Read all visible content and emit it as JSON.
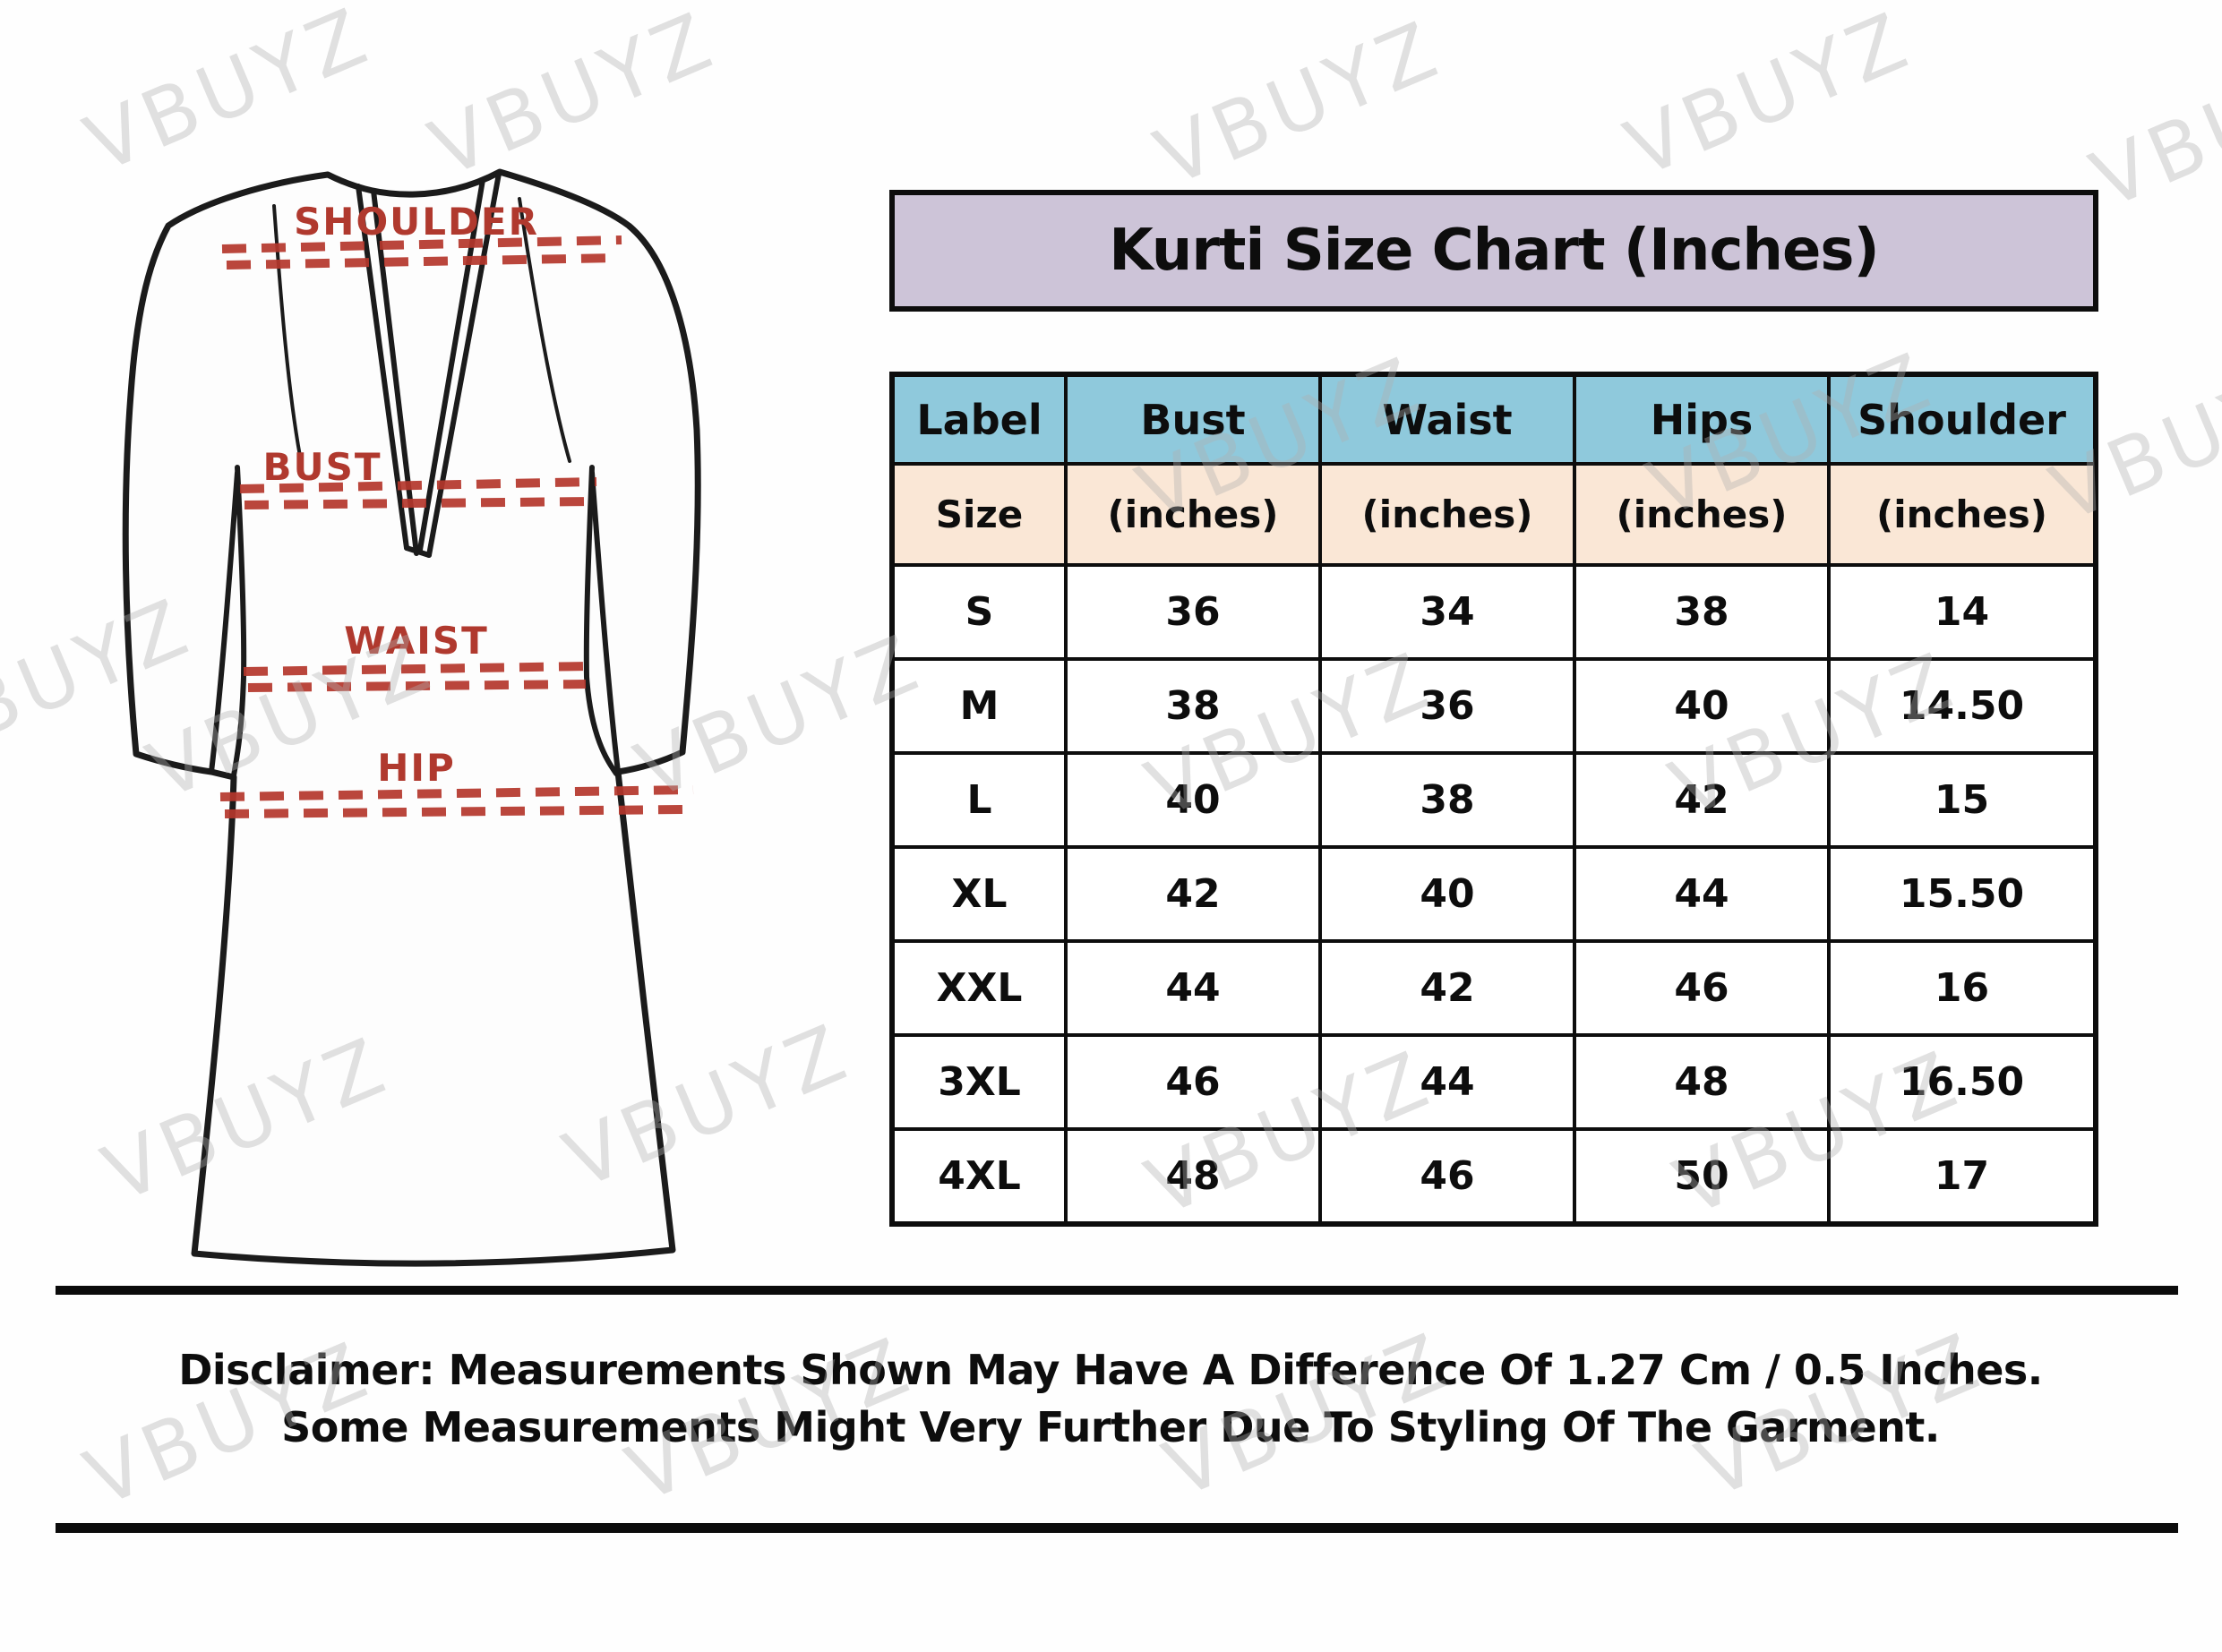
{
  "title": "Kurti Size Chart (Inches)",
  "watermark": {
    "text": "VBUYZ"
  },
  "diagram": {
    "shoulder_label": "SHOULDER",
    "bust_label": "BUST",
    "waist_label": "WAIST",
    "hip_label": "HIP"
  },
  "table": {
    "columns": [
      {
        "label": "Label",
        "sub": "Size"
      },
      {
        "label": "Bust",
        "sub": "(inches)"
      },
      {
        "label": "Waist",
        "sub": "(inches)"
      },
      {
        "label": "Hips",
        "sub": "(inches)"
      },
      {
        "label": "Shoulder",
        "sub": "(inches)"
      }
    ],
    "rows": [
      [
        "S",
        "36",
        "34",
        "38",
        "14"
      ],
      [
        "M",
        "38",
        "36",
        "40",
        "14.50"
      ],
      [
        "L",
        "40",
        "38",
        "42",
        "15"
      ],
      [
        "XL",
        "42",
        "40",
        "44",
        "15.50"
      ],
      [
        "XXL",
        "44",
        "42",
        "46",
        "16"
      ],
      [
        "3XL",
        "46",
        "44",
        "48",
        "16.50"
      ],
      [
        "4XL",
        "48",
        "46",
        "50",
        "17"
      ]
    ]
  },
  "disclaimer": {
    "line1": "Disclaimer: Measurements Shown May Have A Difference Of 1.27 Cm / 0.5 Inches.",
    "line2": "Some Measurements Might Very Further Due To Styling Of The Garment."
  },
  "colors": {
    "title_bg": "#cdc4d8",
    "header_bg": "#8fc9dc",
    "subheader_bg": "#fae7d6",
    "border": "#0d0d0d",
    "label_red": "#b0392e",
    "dash_red": "#b5372c",
    "garment_line": "#1b1b1b"
  },
  "chart_data": {
    "type": "table",
    "title": "Kurti Size Chart (Inches)",
    "columns": [
      "Label Size",
      "Bust (inches)",
      "Waist (inches)",
      "Hips (inches)",
      "Shoulder (inches)"
    ],
    "rows": [
      [
        "S",
        36,
        34,
        38,
        14
      ],
      [
        "M",
        38,
        36,
        40,
        14.5
      ],
      [
        "L",
        40,
        38,
        42,
        15
      ],
      [
        "XL",
        42,
        40,
        44,
        15.5
      ],
      [
        "XXL",
        44,
        42,
        46,
        16
      ],
      [
        "3XL",
        46,
        44,
        48,
        16.5
      ],
      [
        "4XL",
        48,
        46,
        50,
        17
      ]
    ]
  }
}
